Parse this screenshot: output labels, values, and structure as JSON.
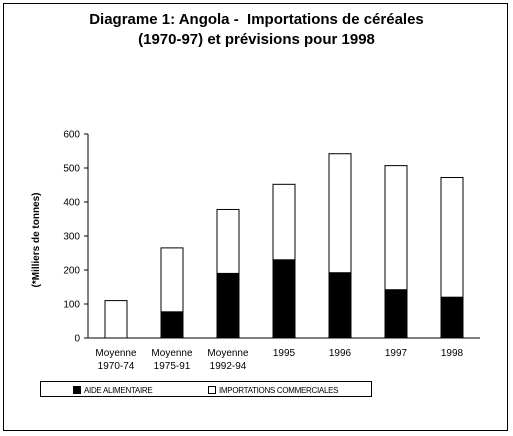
{
  "chart_data": {
    "type": "bar",
    "stacked": true,
    "title": [
      "Diagrame 1: Angola -  Importations de céréales",
      "(1970-97) et prévisions pour 1998"
    ],
    "ylabel": "(*Milliers de tonnes)",
    "xlabel": "",
    "ylim": [
      0,
      600
    ],
    "yticks": [
      0,
      100,
      200,
      300,
      400,
      500,
      600
    ],
    "categories": [
      [
        "Moyenne",
        "1970-74"
      ],
      [
        "Moyenne",
        "1975-91"
      ],
      [
        "Moyenne",
        "1992-94"
      ],
      [
        "1995"
      ],
      [
        "1996"
      ],
      [
        "1997"
      ],
      [
        "1998"
      ]
    ],
    "series": [
      {
        "name": "AIDE ALIMENTAIRE",
        "color": "#000000",
        "values": [
          0,
          77,
          190,
          230,
          192,
          142,
          120
        ]
      },
      {
        "name": "IMPORTATIONS COMMERCIALES",
        "color": "#ffffff",
        "values": [
          110,
          188,
          188,
          222,
          350,
          365,
          352
        ]
      }
    ],
    "grid": false,
    "legend": "bottom"
  }
}
